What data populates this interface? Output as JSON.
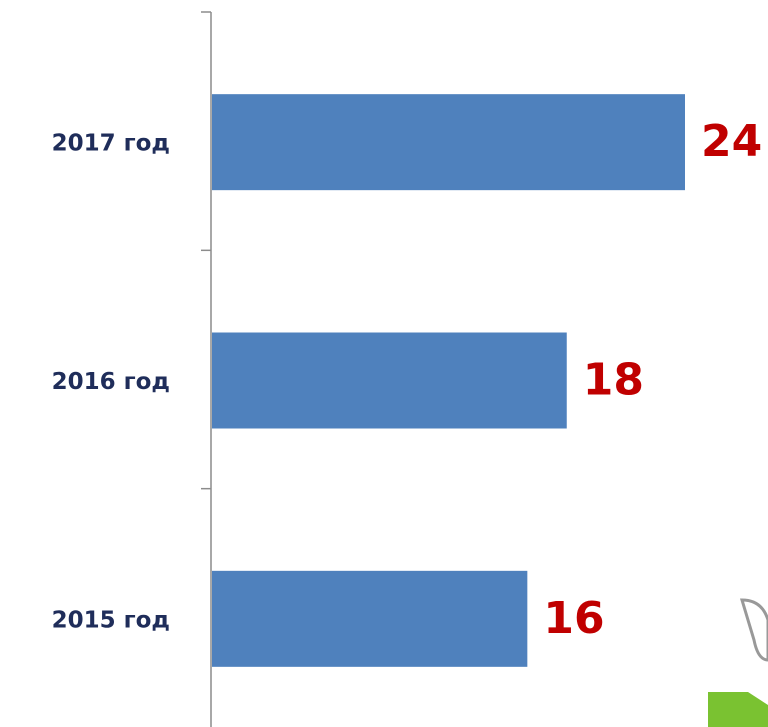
{
  "chart_data": {
    "type": "barh",
    "categories": [
      "2017 год",
      "2016 год",
      "2015 год"
    ],
    "values": [
      24,
      18,
      16
    ],
    "color": "#4f81bd"
  }
}
